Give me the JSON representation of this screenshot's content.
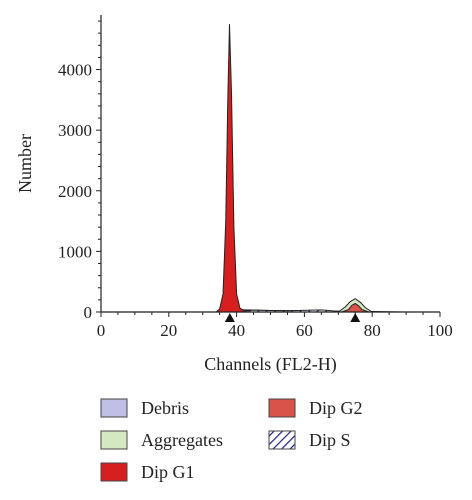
{
  "chart_data": {
    "type": "area",
    "title": "",
    "xlabel": "Channels (FL2-H)",
    "ylabel": "Number",
    "xlim": [
      0,
      100
    ],
    "ylim": [
      0,
      4900
    ],
    "x_ticks": [
      0,
      20,
      40,
      60,
      80,
      100
    ],
    "y_ticks": [
      0,
      1000,
      2000,
      3000,
      4000
    ],
    "grid": false,
    "legend_position": "bottom",
    "markers": [
      38,
      75
    ],
    "series": [
      {
        "name": "Dip G1",
        "color": "#d61f1f",
        "x": [
          34,
          35,
          36,
          36.8,
          37.4,
          37.9,
          38.5,
          39.2,
          40,
          41,
          43
        ],
        "y": [
          0,
          50,
          300,
          1500,
          3500,
          4750,
          3600,
          1400,
          300,
          60,
          0
        ]
      },
      {
        "name": "Dip G2",
        "color": "#d9534a",
        "x": [
          71,
          73,
          74,
          75,
          76,
          77,
          79
        ],
        "y": [
          0,
          40,
          110,
          140,
          100,
          40,
          0
        ]
      },
      {
        "name": "Aggregates",
        "color": "#d4e8c2",
        "x": [
          70,
          72,
          73.5,
          75,
          76.5,
          78,
          80
        ],
        "y": [
          0,
          80,
          170,
          220,
          160,
          70,
          0
        ]
      },
      {
        "name": "Debris",
        "color": "#c0c0e6",
        "x": [
          35,
          40,
          50,
          60,
          70,
          80,
          90
        ],
        "y": [
          0,
          40,
          25,
          20,
          15,
          8,
          0
        ]
      },
      {
        "name": "Dip S",
        "color": "#1c1c7a",
        "x": [
          40,
          45,
          55,
          65,
          72
        ],
        "y": [
          0,
          30,
          20,
          35,
          0
        ]
      }
    ],
    "legend": [
      {
        "label": "Debris",
        "color": "#c0c0e6",
        "pattern": "solid"
      },
      {
        "label": "Dip G2",
        "color": "#d9534a",
        "pattern": "solid"
      },
      {
        "label": "Aggregates",
        "color": "#d4e8c2",
        "pattern": "solid"
      },
      {
        "label": "Dip S",
        "color": "#1c1c7a",
        "pattern": "hatch"
      },
      {
        "label": "Dip G1",
        "color": "#d61f1f",
        "pattern": "solid"
      }
    ]
  }
}
